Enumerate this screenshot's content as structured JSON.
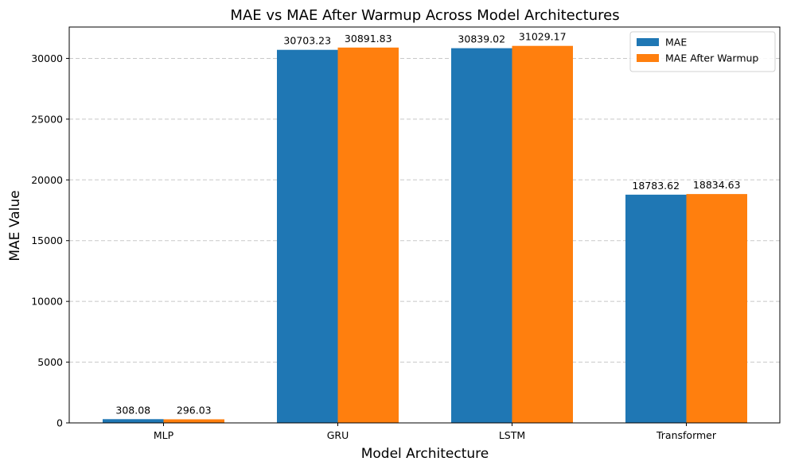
{
  "chart_data": {
    "type": "bar",
    "title": "MAE vs MAE After Warmup Across Model Architectures",
    "xlabel": "Model Architecture",
    "ylabel": "MAE Value",
    "categories": [
      "MLP",
      "GRU",
      "LSTM",
      "Transformer"
    ],
    "series": [
      {
        "name": "MAE",
        "values": [
          308.08,
          30703.23,
          30839.02,
          18783.62
        ],
        "labels": [
          "308.08",
          "30703.23",
          "30839.02",
          "18783.62"
        ],
        "color": "#1f77b4"
      },
      {
        "name": "MAE After Warmup",
        "values": [
          296.03,
          30891.83,
          31029.17,
          18834.63
        ],
        "labels": [
          "296.03",
          "30891.83",
          "31029.17",
          "18834.63"
        ],
        "color": "#ff7f0e"
      }
    ],
    "ylim": [
      0,
      32581
    ],
    "yticks": [
      0,
      5000,
      10000,
      15000,
      20000,
      25000,
      30000
    ],
    "ytick_labels": [
      "0",
      "5000",
      "10000",
      "15000",
      "20000",
      "25000",
      "30000"
    ],
    "grid": "y-dashed",
    "legend_position": "top-right"
  }
}
